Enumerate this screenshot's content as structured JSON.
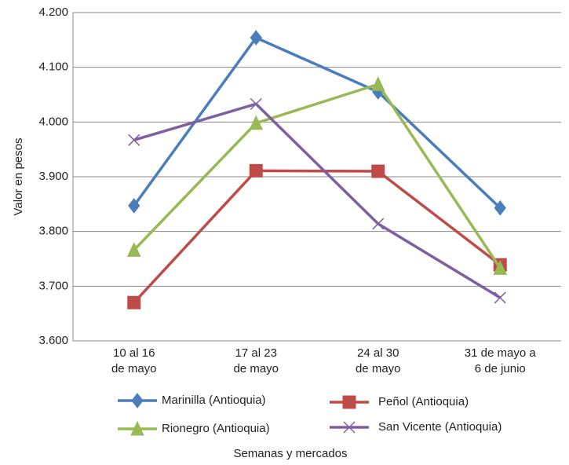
{
  "chart_data": {
    "type": "line",
    "x_label": "Semanas y mercados",
    "y_label": "Valor en pesos",
    "categories": [
      "10 al 16\nde mayo",
      "17 al 23\nde mayo",
      "24 al 30\nde mayo",
      "31 de mayo a\n6 de junio"
    ],
    "series": [
      {
        "name": "Marinilla (Antioquia)",
        "color": "#4a7ebb",
        "marker": "diamond",
        "values": [
          3847,
          4154,
          4055,
          3843
        ]
      },
      {
        "name": "Peñol (Antioquia)",
        "color": "#be4b48",
        "marker": "square",
        "values": [
          3670,
          3911,
          3910,
          3739
        ]
      },
      {
        "name": "Rionegro (Antioquia)",
        "color": "#98b954",
        "marker": "triangle",
        "values": [
          3766,
          3998,
          4069,
          3733
        ]
      },
      {
        "name": "San Vicente (Antioquia)",
        "color": "#7d60a0",
        "marker": "x",
        "values": [
          3967,
          4033,
          3814,
          3679
        ]
      }
    ],
    "ylim": [
      3600,
      4200
    ],
    "yticks": [
      {
        "value": 3600,
        "label": "3.600"
      },
      {
        "value": 3700,
        "label": "3.700"
      },
      {
        "value": 3800,
        "label": "3.800"
      },
      {
        "value": 3900,
        "label": "3.900"
      },
      {
        "value": 4000,
        "label": "4.000"
      },
      {
        "value": 4100,
        "label": "4.100"
      },
      {
        "value": 4200,
        "label": "4.200"
      }
    ],
    "grid": true
  }
}
